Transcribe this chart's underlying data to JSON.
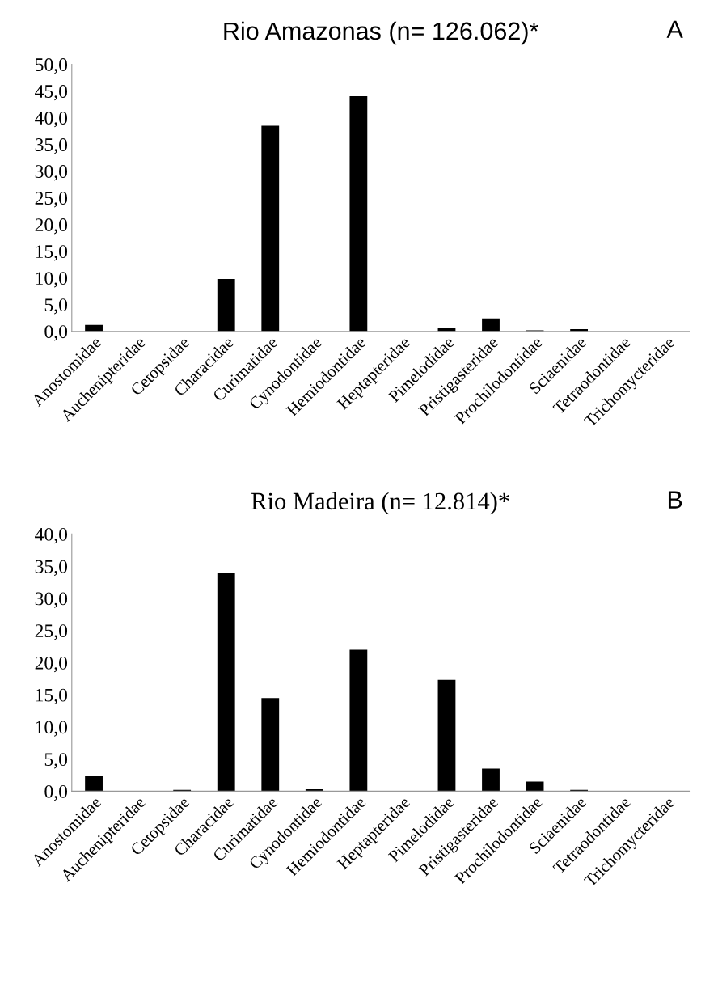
{
  "chart_data": [
    {
      "type": "bar",
      "title": "Rio Amazonas (n= 126.062)*",
      "annotations": [
        "A"
      ],
      "categories": [
        "Anostomidae",
        "Auchenipteridae",
        "Cetopsidae",
        "Characidae",
        "Curimatidae",
        "Cynodontidae",
        "Hemiodontidae",
        "Heptapteridae",
        "Pimelodidae",
        "Pristigasteridae",
        "Prochilodontidae",
        "Sciaenidae",
        "Tetraodontidae",
        "Trichomycteridae"
      ],
      "values": [
        1.2,
        0,
        0,
        9.8,
        38.5,
        0,
        44.0,
        0,
        0.7,
        2.4,
        0.2,
        0.4,
        0,
        0
      ],
      "color": "#000000",
      "ylim": [
        0,
        50
      ],
      "yticks": [
        {
          "value": 0,
          "label": "0,0"
        },
        {
          "value": 5,
          "label": "5,0"
        },
        {
          "value": 10,
          "label": "10,0"
        },
        {
          "value": 15,
          "label": "15,0"
        },
        {
          "value": 20,
          "label": "20,0"
        },
        {
          "value": 25,
          "label": "25,0"
        },
        {
          "value": 30,
          "label": "30,0"
        },
        {
          "value": 35,
          "label": "35,0"
        },
        {
          "value": 40,
          "label": "40,0"
        },
        {
          "value": 45,
          "label": "45,0"
        },
        {
          "value": 50,
          "label": "50,0"
        }
      ],
      "grid": false
    },
    {
      "type": "bar",
      "title": "Rio Madeira (n= 12.814)*",
      "annotations": [
        "B"
      ],
      "categories": [
        "Anostomidae",
        "Auchenipteridae",
        "Cetopsidae",
        "Characidae",
        "Curimatidae",
        "Cynodontidae",
        "Hemiodontidae",
        "Heptapteridae",
        "Pimelodidae",
        "Pristigasteridae",
        "Prochilodontidae",
        "Sciaenidae",
        "Tetraodontidae",
        "Trichomycteridae"
      ],
      "values": [
        2.3,
        0,
        0.2,
        34.0,
        14.5,
        0.3,
        22.0,
        0,
        17.3,
        3.5,
        1.5,
        0.2,
        0,
        0
      ],
      "color": "#000000",
      "ylim": [
        0,
        40
      ],
      "yticks": [
        {
          "value": 0,
          "label": "0,0"
        },
        {
          "value": 5,
          "label": "5,0"
        },
        {
          "value": 10,
          "label": "10,0"
        },
        {
          "value": 15,
          "label": "15,0"
        },
        {
          "value": 20,
          "label": "20,0"
        },
        {
          "value": 25,
          "label": "25,0"
        },
        {
          "value": 30,
          "label": "30,0"
        },
        {
          "value": 35,
          "label": "35,0"
        },
        {
          "value": 40,
          "label": "40,0"
        }
      ],
      "grid": false
    }
  ]
}
